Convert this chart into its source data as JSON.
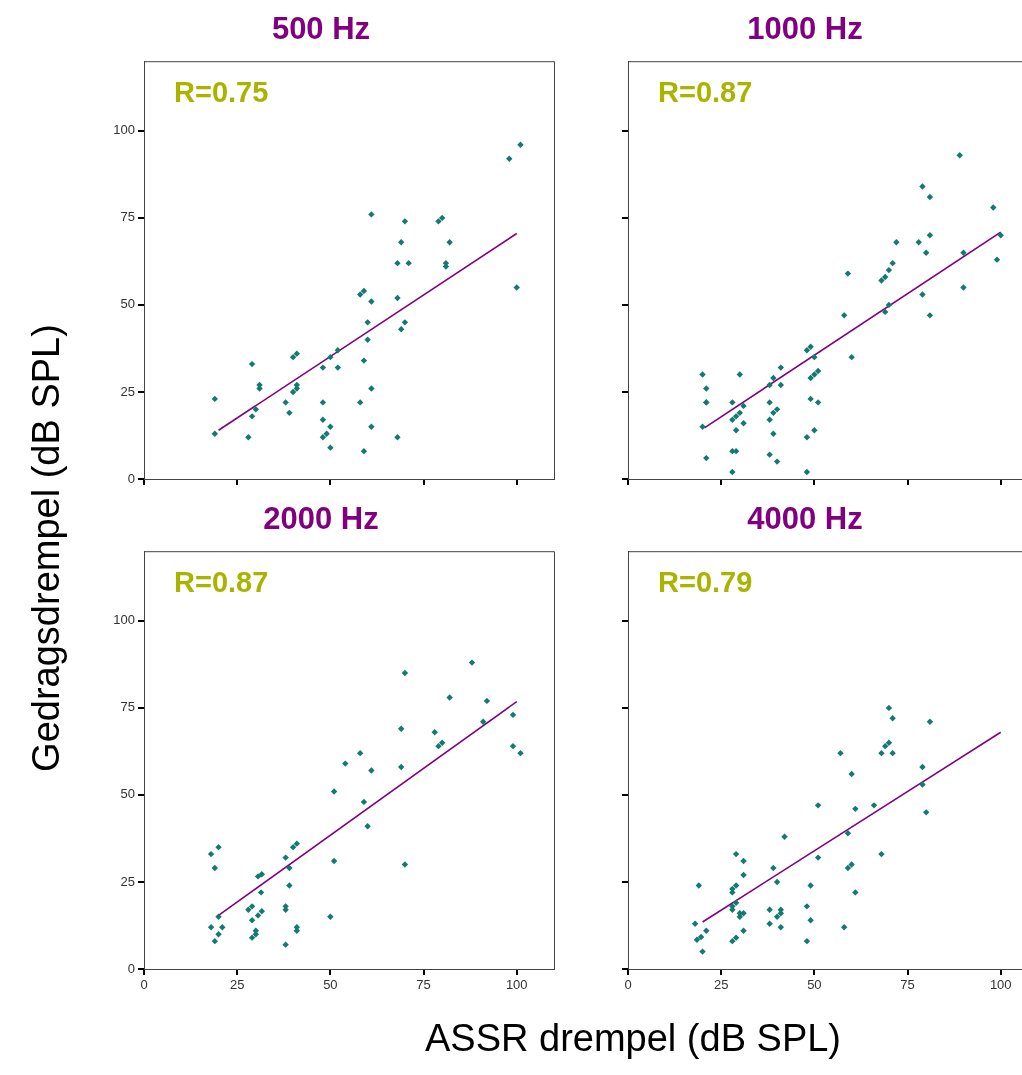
{
  "chart_data": [
    {
      "type": "scatter",
      "title": "500 Hz",
      "ylabel": "Gedragsdrempel (dB SPL)",
      "annotations": [
        "R=0.75"
      ],
      "xlim": [
        0,
        110
      ],
      "ylim": [
        0,
        120
      ],
      "xticks": [
        0,
        25,
        50,
        75,
        100
      ],
      "yticks": [
        0,
        25,
        50,
        75,
        100
      ],
      "tick_labels": "y",
      "grid": false,
      "legend": false,
      "series": [
        {
          "marker": "diamond",
          "color": "#137a72",
          "x": [
            19,
            19,
            29,
            28,
            29,
            30,
            31,
            31,
            38,
            39,
            40,
            41,
            41,
            40,
            41,
            48,
            48,
            48,
            49,
            50,
            50,
            48,
            50,
            52,
            52,
            58,
            59,
            60,
            60,
            58,
            59,
            61,
            61,
            61,
            59,
            61,
            68,
            68,
            68,
            69,
            70,
            69,
            70,
            71,
            79,
            80,
            82,
            81,
            81,
            98,
            101,
            100
          ],
          "values": [
            23,
            13,
            33,
            12,
            18,
            20,
            26,
            27,
            22,
            19,
            25,
            26,
            27,
            35,
            36,
            22,
            17,
            12,
            13,
            15,
            9,
            32,
            35,
            37,
            32,
            22,
            34,
            40,
            45,
            53,
            54,
            51,
            26,
            15,
            8,
            76,
            12,
            52,
            62,
            68,
            74,
            43,
            45,
            62,
            74,
            75,
            68,
            61,
            62,
            92,
            96,
            55
          ]
        },
        {
          "type": "line",
          "marker": "none",
          "color": "#800080",
          "x": [
            20,
            100
          ],
          "values": [
            14,
            70.5
          ]
        }
      ]
    },
    {
      "type": "scatter",
      "title": "1000 Hz",
      "annotations": [
        "R=0.87"
      ],
      "xlim": [
        0,
        110
      ],
      "ylim": [
        0,
        120
      ],
      "xticks": [
        0,
        25,
        50,
        75,
        100
      ],
      "yticks": [
        0,
        25,
        50,
        75,
        100
      ],
      "tick_labels": false,
      "grid": false,
      "legend": false,
      "series": [
        {
          "marker": "diamond",
          "color": "#137a72",
          "x": [
            20,
            21,
            21,
            21,
            20,
            21,
            28,
            28,
            29,
            30,
            29,
            31,
            31,
            30,
            28,
            29,
            28,
            38,
            39,
            41,
            41,
            38,
            38,
            39,
            40,
            39,
            38,
            40,
            48,
            48,
            50,
            49,
            51,
            49,
            50,
            51,
            50,
            48,
            49,
            58,
            59,
            60,
            68,
            69,
            70,
            71,
            69,
            70,
            72,
            78,
            80,
            81,
            79,
            81,
            79,
            81,
            89,
            90,
            90,
            98,
            100,
            99
          ],
          "values": [
            30,
            26,
            22,
            22,
            15,
            6,
            22,
            17,
            18,
            19,
            14,
            21,
            16,
            30,
            8,
            8,
            2,
            27,
            29,
            32,
            27,
            22,
            17,
            19,
            20,
            13,
            7,
            5,
            2,
            12,
            14,
            23,
            22,
            29,
            30,
            31,
            35,
            37,
            38,
            47,
            59,
            35,
            57,
            58,
            60,
            62,
            48,
            50,
            68,
            68,
            65,
            70,
            84,
            81,
            53,
            47,
            93,
            65,
            55,
            78,
            70,
            63
          ]
        },
        {
          "type": "line",
          "marker": "none",
          "color": "#800080",
          "x": [
            20.5,
            100
          ],
          "values": [
            14.7,
            70.9
          ]
        }
      ]
    },
    {
      "type": "scatter",
      "title": "2000 Hz",
      "xlabel": "ASSR drempel (dB SPL)",
      "annotations": [
        "R=0.87"
      ],
      "xlim": [
        0,
        110
      ],
      "ylim": [
        0,
        120
      ],
      "xticks": [
        0,
        25,
        50,
        75,
        100
      ],
      "yticks": [
        0,
        25,
        50,
        75,
        100
      ],
      "grid": false,
      "legend": false,
      "series": [
        {
          "marker": "diamond",
          "color": "#137a72",
          "x": [
            18,
            20,
            19,
            18,
            20,
            19,
            20,
            21,
            28,
            29,
            29,
            29,
            30,
            30,
            30.6,
            31.6,
            31.4,
            31.6,
            30.6,
            38,
            38,
            38,
            39,
            39,
            38,
            41,
            41,
            40,
            41,
            50,
            51,
            51,
            54,
            58,
            59,
            60,
            61,
            69,
            69,
            70,
            70,
            78,
            79,
            80,
            82,
            88,
            91,
            92,
            99,
            99,
            101
          ],
          "values": [
            33,
            35,
            29,
            12,
            15,
            8,
            10,
            12,
            17,
            18,
            14,
            9,
            10,
            11,
            26.6,
            27.2,
            22,
            16.6,
            15.4,
            32,
            17,
            18,
            29,
            24,
            7,
            11,
            12,
            35,
            36,
            15,
            31,
            51,
            59,
            62,
            48,
            41,
            57,
            58,
            69,
            85,
            30,
            68,
            64,
            65,
            78,
            88,
            71,
            77,
            73,
            64,
            62
          ]
        },
        {
          "type": "line",
          "marker": "none",
          "color": "#800080",
          "x": [
            20,
            100
          ],
          "values": [
            15.4,
            76.8
          ]
        }
      ]
    },
    {
      "type": "scatter",
      "title": "4000 Hz",
      "annotations": [
        "R=0.79"
      ],
      "xlim": [
        0,
        110
      ],
      "ylim": [
        0,
        120
      ],
      "xticks": [
        0,
        25,
        50,
        75,
        100
      ],
      "yticks": [
        0,
        25,
        50,
        75,
        100
      ],
      "tick_labels": "x",
      "grid": false,
      "legend": false,
      "series": [
        {
          "marker": "diamond",
          "color": "#137a72",
          "x": [
            18,
            19,
            18.5,
            19.6,
            20,
            21,
            29,
            31,
            31,
            28,
            28,
            29,
            28,
            28,
            29,
            30,
            30,
            31,
            31,
            28,
            29,
            39,
            40,
            42,
            38,
            38,
            40,
            41,
            41,
            41,
            49,
            48,
            49,
            48,
            51,
            51,
            57,
            58,
            60,
            61,
            59,
            59,
            60,
            61,
            66,
            68,
            68,
            69,
            70,
            71,
            70,
            71,
            79,
            79,
            80,
            81
          ],
          "values": [
            13,
            24,
            8.4,
            9.2,
            5,
            11,
            33,
            31,
            27,
            22,
            23,
            24,
            17,
            18,
            19,
            15,
            16,
            16,
            11,
            8,
            9,
            29,
            25,
            38,
            17,
            13,
            15,
            16,
            17,
            12,
            24,
            18,
            14,
            8,
            32,
            47,
            62,
            12,
            56,
            46,
            39,
            29,
            30,
            22,
            47,
            33,
            62,
            64,
            65,
            62,
            75,
            72,
            58,
            53,
            45,
            71
          ]
        },
        {
          "type": "line",
          "marker": "none",
          "color": "#800080",
          "x": [
            20,
            100
          ],
          "values": [
            13.5,
            68
          ]
        }
      ]
    }
  ]
}
